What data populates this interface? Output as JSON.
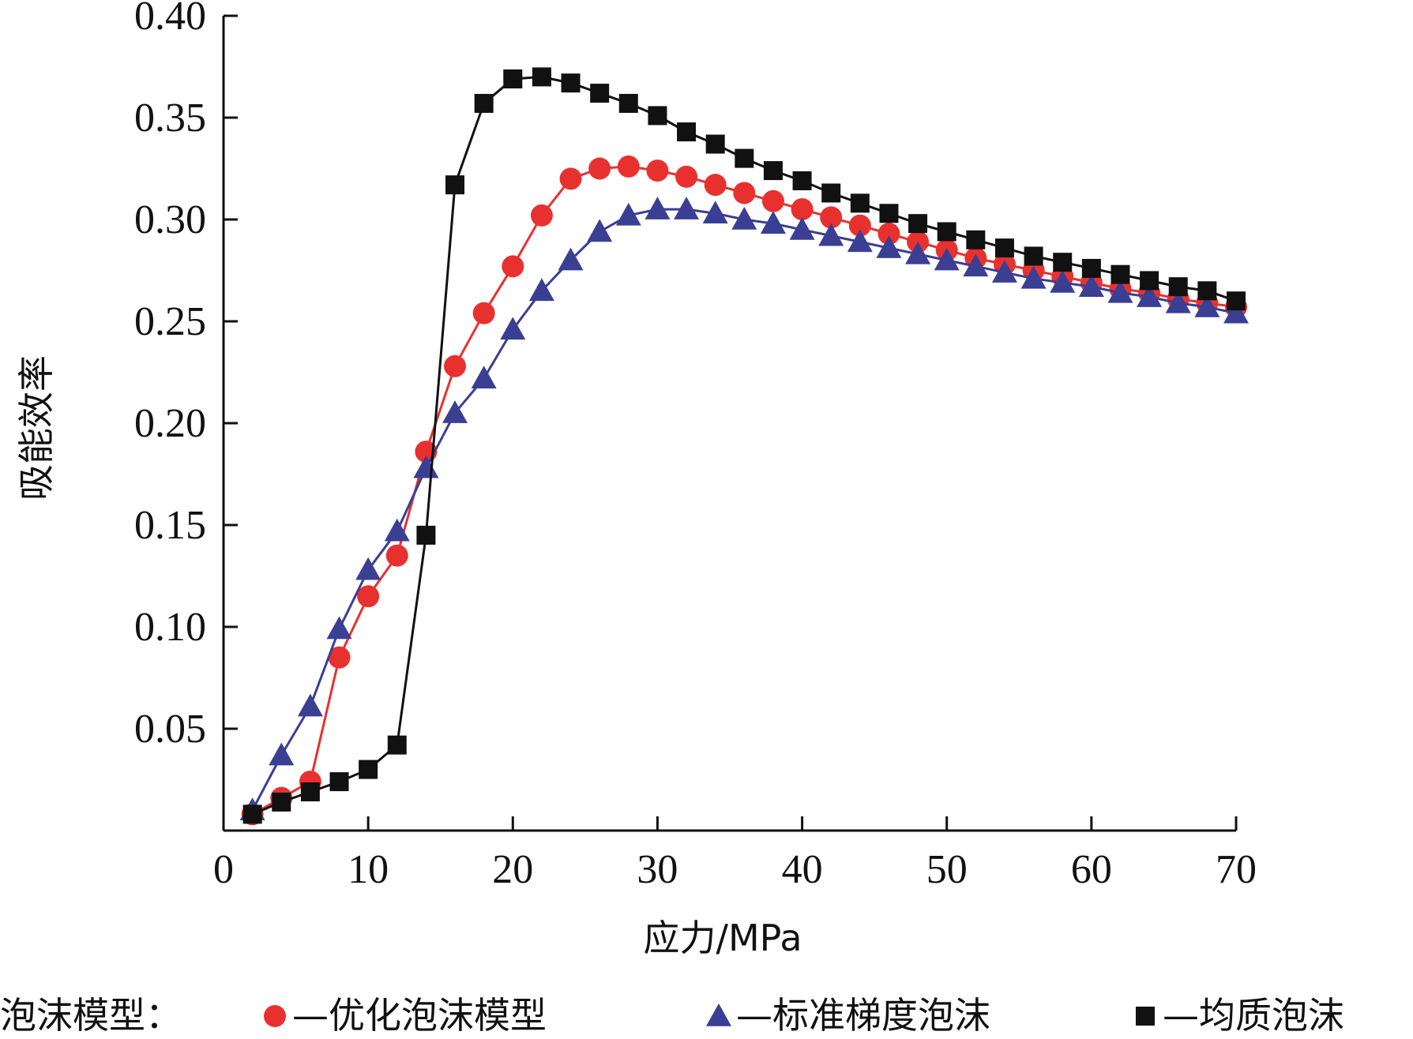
{
  "chart_data": {
    "type": "line",
    "title": "",
    "xlabel": "应力/MPa",
    "ylabel": "吸能效率",
    "xlim": [
      0,
      70
    ],
    "ylim": [
      0,
      0.4
    ],
    "xticks": [
      "0",
      "10",
      "20",
      "30",
      "40",
      "50",
      "60",
      "70"
    ],
    "yticks": [
      "0.05",
      "0.10",
      "0.15",
      "0.20",
      "0.25",
      "0.30",
      "0.35",
      "0.40"
    ],
    "grid": false,
    "legend": {
      "title": "泡沫模型：",
      "placement": "bottom",
      "dash": "—"
    },
    "series": [
      {
        "name": "优化泡沫模型",
        "color": "#e8312f",
        "marker": "circle",
        "x": [
          2,
          4,
          6,
          8,
          10,
          12,
          14,
          16,
          18,
          20,
          22,
          24,
          26,
          28,
          30,
          32,
          34,
          36,
          38,
          40,
          42,
          44,
          46,
          48,
          50,
          52,
          54,
          56,
          58,
          60,
          62,
          64,
          66,
          68,
          70
        ],
        "y": [
          0.008,
          0.016,
          0.024,
          0.085,
          0.115,
          0.135,
          0.186,
          0.228,
          0.254,
          0.277,
          0.302,
          0.32,
          0.325,
          0.326,
          0.324,
          0.321,
          0.317,
          0.313,
          0.309,
          0.305,
          0.301,
          0.297,
          0.293,
          0.289,
          0.285,
          0.281,
          0.278,
          0.275,
          0.272,
          0.269,
          0.266,
          0.264,
          0.261,
          0.259,
          0.257
        ]
      },
      {
        "name": "标准梯度泡沫",
        "color": "#3a3f94",
        "marker": "triangle",
        "x": [
          2,
          4,
          6,
          8,
          10,
          12,
          14,
          16,
          18,
          20,
          22,
          24,
          26,
          28,
          30,
          32,
          34,
          36,
          38,
          40,
          42,
          44,
          46,
          48,
          50,
          52,
          54,
          56,
          58,
          60,
          62,
          64,
          66,
          68,
          70
        ],
        "y": [
          0.01,
          0.037,
          0.061,
          0.099,
          0.128,
          0.147,
          0.178,
          0.205,
          0.222,
          0.246,
          0.265,
          0.28,
          0.294,
          0.302,
          0.305,
          0.305,
          0.303,
          0.3,
          0.298,
          0.295,
          0.292,
          0.289,
          0.286,
          0.283,
          0.28,
          0.277,
          0.274,
          0.271,
          0.269,
          0.267,
          0.264,
          0.262,
          0.259,
          0.257,
          0.254
        ]
      },
      {
        "name": "均质泡沫",
        "color": "#111111",
        "marker": "square",
        "x": [
          2,
          4,
          6,
          8,
          10,
          12,
          14,
          16,
          18,
          20,
          22,
          24,
          26,
          28,
          30,
          32,
          34,
          36,
          38,
          40,
          42,
          44,
          46,
          48,
          50,
          52,
          54,
          56,
          58,
          60,
          62,
          64,
          66,
          68,
          70
        ],
        "y": [
          0.008,
          0.014,
          0.019,
          0.024,
          0.03,
          0.042,
          0.145,
          0.317,
          0.357,
          0.369,
          0.37,
          0.367,
          0.362,
          0.357,
          0.351,
          0.343,
          0.337,
          0.33,
          0.324,
          0.319,
          0.313,
          0.308,
          0.303,
          0.298,
          0.294,
          0.29,
          0.286,
          0.282,
          0.279,
          0.276,
          0.273,
          0.27,
          0.267,
          0.265,
          0.26
        ]
      }
    ]
  }
}
